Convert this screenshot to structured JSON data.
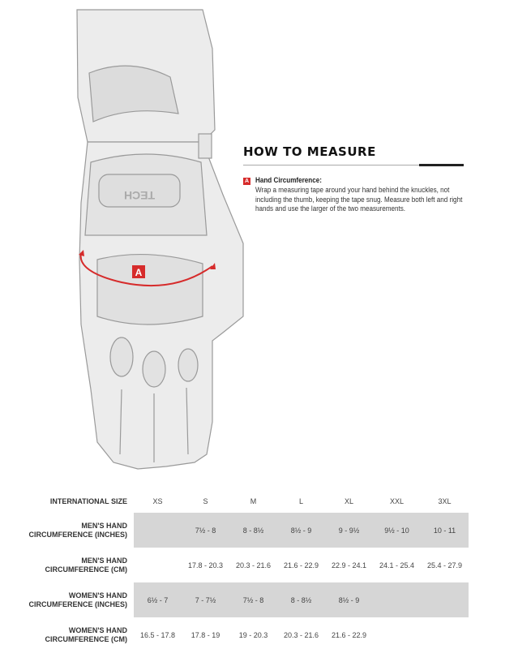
{
  "how_to_measure": {
    "title": "HOW TO MEASURE",
    "marker": "A",
    "heading": "Hand Circumference:",
    "body": "Wrap a measuring tape around your hand behind the knuckles, not including the thumb, keeping the tape snug. Measure both left and right hands and use the larger of the two measurements."
  },
  "illustration": {
    "marker": "A",
    "logo_text": "TECH",
    "accent": "#d62b2b"
  },
  "table": {
    "header": {
      "label": "INTERNATIONAL SIZE",
      "sizes": [
        "XS",
        "S",
        "M",
        "L",
        "XL",
        "XXL",
        "3XL"
      ]
    },
    "rows": [
      {
        "label_1": "MEN'S HAND",
        "label_2": "CIRCUMFERENCE (INCHES)",
        "values": [
          "",
          "7½ - 8",
          "8 - 8½",
          "8½ - 9",
          "9 - 9½",
          "9½ - 10",
          "10 - 11"
        ]
      },
      {
        "label_1": "MEN'S HAND",
        "label_2": "CIRCUMFERENCE (CM)",
        "values": [
          "",
          "17.8 - 20.3",
          "20.3 - 21.6",
          "21.6 - 22.9",
          "22.9 - 24.1",
          "24.1 - 25.4",
          "25.4 - 27.9"
        ]
      },
      {
        "label_1": "WOMEN'S HAND",
        "label_2": "CIRCUMFERENCE (INCHES)",
        "values": [
          "6½ - 7",
          "7 - 7½",
          "7½ - 8",
          "8 - 8½",
          "8½ - 9",
          "",
          ""
        ]
      },
      {
        "label_1": "WOMEN'S HAND",
        "label_2": "CIRCUMFERENCE (CM)",
        "values": [
          "16.5 - 17.8",
          "17.8 - 19",
          "19 - 20.3",
          "20.3 - 21.6",
          "21.6 - 22.9",
          "",
          ""
        ]
      }
    ]
  }
}
